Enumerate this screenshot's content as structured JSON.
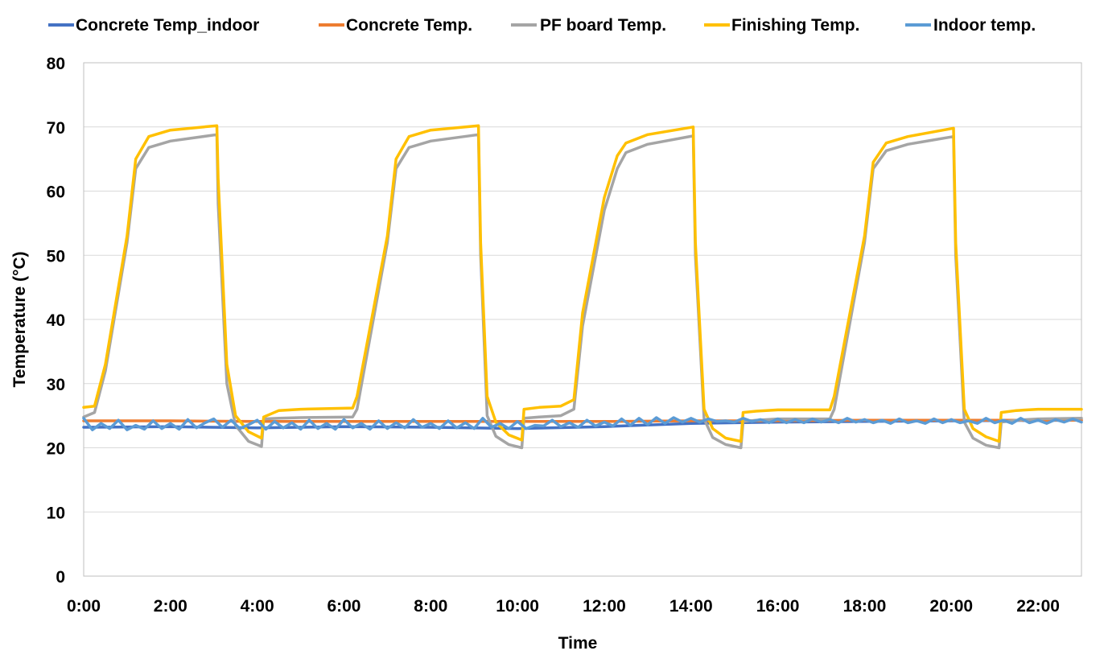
{
  "chart_data": {
    "type": "line",
    "title": "",
    "xlabel": "Time",
    "ylabel": "Temperature (°C)",
    "x_unit": "hours",
    "xlim": [
      0,
      23
    ],
    "ylim": [
      0,
      80
    ],
    "x_ticks": [
      0,
      2,
      4,
      6,
      8,
      10,
      12,
      14,
      16,
      18,
      20,
      22
    ],
    "x_tick_labels": [
      "0:00",
      "2:00",
      "4:00",
      "6:00",
      "8:00",
      "10:00",
      "12:00",
      "14:00",
      "16:00",
      "18:00",
      "20:00",
      "22:00"
    ],
    "y_ticks": [
      0,
      10,
      20,
      30,
      40,
      50,
      60,
      70,
      80
    ],
    "y_tick_labels": [
      "0",
      "10",
      "20",
      "30",
      "40",
      "50",
      "60",
      "70",
      "80"
    ],
    "grid": "horizontal",
    "legend_position": "top",
    "series": [
      {
        "name": "Concrete Temp_indoor",
        "color": "#4472C4",
        "x": [
          0,
          2,
          4,
          6,
          8,
          10,
          12,
          14,
          16,
          18,
          20,
          23
        ],
        "y": [
          23.2,
          23.3,
          23.1,
          23.3,
          23.2,
          23.0,
          23.3,
          23.8,
          24.0,
          24.1,
          24.2,
          24.3
        ]
      },
      {
        "name": "Concrete Temp.",
        "color": "#ED7D31",
        "x": [
          0,
          2,
          4,
          6,
          8,
          10,
          12,
          14,
          16,
          18,
          20,
          23
        ],
        "y": [
          24.2,
          24.2,
          24.1,
          24.1,
          24.1,
          24.1,
          24.1,
          24.2,
          24.2,
          24.3,
          24.3,
          24.3
        ]
      },
      {
        "name": "PF board Temp.",
        "color": "#A5A5A5",
        "x": [
          0,
          0.25,
          0.5,
          1.0,
          1.2,
          1.5,
          2.0,
          3.07,
          3.1,
          3.3,
          3.5,
          3.8,
          4.1,
          4.15,
          4.5,
          5.0,
          6.2,
          6.3,
          7.0,
          7.2,
          7.5,
          8.0,
          9.1,
          9.15,
          9.3,
          9.5,
          9.8,
          10.1,
          10.15,
          10.5,
          11.0,
          11.3,
          11.5,
          12.0,
          12.3,
          12.5,
          13.0,
          14.05,
          14.1,
          14.3,
          14.5,
          14.8,
          15.15,
          15.2,
          15.5,
          16.0,
          17.2,
          17.3,
          18.0,
          18.2,
          18.5,
          19.0,
          20.05,
          20.1,
          20.3,
          20.5,
          20.8,
          21.1,
          21.15,
          21.5,
          22.0,
          23.0
        ],
        "y": [
          24.8,
          25.5,
          32,
          52,
          63.5,
          66.8,
          67.8,
          68.8,
          58,
          30,
          23.5,
          21,
          20.2,
          24.5,
          24.6,
          24.7,
          24.8,
          26,
          52,
          63.5,
          66.8,
          67.8,
          68.8,
          50,
          25,
          21.8,
          20.5,
          20,
          24.6,
          24.8,
          25,
          26,
          39,
          57,
          63.5,
          66,
          67.3,
          68.6,
          50,
          24.5,
          21.6,
          20.5,
          20,
          24.1,
          24.3,
          24.5,
          24.5,
          26,
          52,
          63.5,
          66.3,
          67.3,
          68.5,
          50,
          24,
          21.5,
          20.4,
          20,
          24,
          24.3,
          24.5,
          24.6
        ]
      },
      {
        "name": "Finishing Temp.",
        "color": "#FFC000",
        "x": [
          0,
          0.25,
          0.5,
          1.0,
          1.2,
          1.5,
          2.0,
          3.07,
          3.1,
          3.3,
          3.5,
          3.8,
          4.1,
          4.15,
          4.5,
          5.0,
          6.2,
          6.3,
          7.0,
          7.2,
          7.5,
          8.0,
          9.1,
          9.15,
          9.3,
          9.5,
          9.8,
          10.1,
          10.15,
          10.5,
          11.0,
          11.3,
          11.5,
          12.0,
          12.3,
          12.5,
          13.0,
          14.05,
          14.1,
          14.3,
          14.5,
          14.8,
          15.15,
          15.2,
          15.5,
          16.0,
          17.2,
          17.3,
          18.0,
          18.2,
          18.5,
          19.0,
          20.05,
          20.1,
          20.3,
          20.5,
          20.8,
          21.1,
          21.15,
          21.5,
          22.0,
          23.0
        ],
        "y": [
          26.3,
          26.5,
          33,
          53,
          65,
          68.5,
          69.5,
          70.2,
          62,
          33,
          25,
          22.5,
          21.5,
          24.8,
          25.8,
          26,
          26.2,
          28,
          53,
          65,
          68.5,
          69.5,
          70.2,
          52,
          28,
          24,
          22,
          21.2,
          26,
          26.3,
          26.5,
          27.5,
          41,
          59,
          65.5,
          67.5,
          68.8,
          70,
          52,
          26,
          23,
          21.5,
          21,
          25.5,
          25.7,
          25.9,
          25.9,
          28,
          53,
          64.5,
          67.5,
          68.5,
          69.8,
          52,
          26,
          23,
          21.7,
          21,
          25.5,
          25.8,
          26,
          26
        ]
      },
      {
        "name": "Indoor temp.",
        "color": "#5B9BD5",
        "x": [
          0,
          0.2,
          0.4,
          0.6,
          0.8,
          1.0,
          1.2,
          1.4,
          1.6,
          1.8,
          2.0,
          2.2,
          2.4,
          2.6,
          2.8,
          3.0,
          3.2,
          3.4,
          3.6,
          3.8,
          4.0,
          4.2,
          4.4,
          4.6,
          4.8,
          5.0,
          5.2,
          5.4,
          5.6,
          5.8,
          6.0,
          6.2,
          6.4,
          6.6,
          6.8,
          7.0,
          7.2,
          7.4,
          7.6,
          7.8,
          8.0,
          8.2,
          8.4,
          8.6,
          8.8,
          9.0,
          9.2,
          9.4,
          9.6,
          9.8,
          10.0,
          10.2,
          10.4,
          10.6,
          10.8,
          11.0,
          11.2,
          11.4,
          11.6,
          11.8,
          12.0,
          12.2,
          12.4,
          12.6,
          12.8,
          13.0,
          13.2,
          13.4,
          13.6,
          13.8,
          14.0,
          14.2,
          14.4,
          14.6,
          14.8,
          15.0,
          15.2,
          15.4,
          15.6,
          15.8,
          16.0,
          16.2,
          16.4,
          16.6,
          16.8,
          17.0,
          17.2,
          17.4,
          17.6,
          17.8,
          18.0,
          18.2,
          18.4,
          18.6,
          18.8,
          19.0,
          19.2,
          19.4,
          19.6,
          19.8,
          20.0,
          20.2,
          20.4,
          20.6,
          20.8,
          21.0,
          21.2,
          21.4,
          21.6,
          21.8,
          22.0,
          22.2,
          22.4,
          22.6,
          22.8,
          23.0
        ],
        "y": [
          24.6,
          22.8,
          23.8,
          23.0,
          24.3,
          22.8,
          23.5,
          22.9,
          24.2,
          23.0,
          23.8,
          22.9,
          24.4,
          23.1,
          23.9,
          24.5,
          23.2,
          24.3,
          23.0,
          23.6,
          24.3,
          22.9,
          24.1,
          23.1,
          23.9,
          22.9,
          24.3,
          23.0,
          23.8,
          22.9,
          24.4,
          23.1,
          23.8,
          22.9,
          24.2,
          23.0,
          23.9,
          23.1,
          24.4,
          23.2,
          23.8,
          23.0,
          24.2,
          23.1,
          23.9,
          23.0,
          24.6,
          23.2,
          23.8,
          23.0,
          24.1,
          23.0,
          23.5,
          23.4,
          24.3,
          23.3,
          23.9,
          23.2,
          24.3,
          23.4,
          24.0,
          23.4,
          24.5,
          23.5,
          24.6,
          23.6,
          24.7,
          23.8,
          24.7,
          24.0,
          24.6,
          24.0,
          24.5,
          24.1,
          24.2,
          24.0,
          24.6,
          24.1,
          24.4,
          23.9,
          24.5,
          23.9,
          24.4,
          23.9,
          24.5,
          24.0,
          24.4,
          23.9,
          24.6,
          24.0,
          24.4,
          23.9,
          24.3,
          23.8,
          24.5,
          23.9,
          24.2,
          23.8,
          24.5,
          23.9,
          24.4,
          23.9,
          24.2,
          23.8,
          24.6,
          23.9,
          24.3,
          23.8,
          24.6,
          23.9,
          24.3,
          23.8,
          24.4,
          24.0,
          24.5,
          24.0
        ]
      }
    ]
  }
}
